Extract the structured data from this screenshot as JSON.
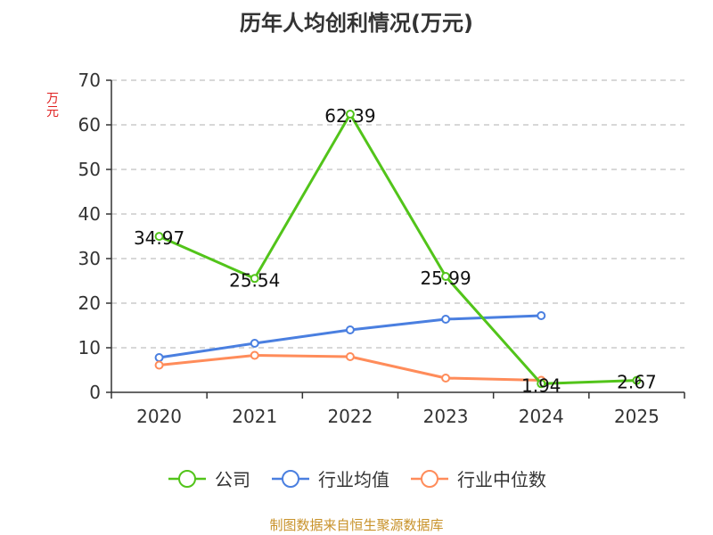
{
  "title": "历年人均创利情况(万元)",
  "y_unit": "万元",
  "source": "制图数据来自恒生聚源数据库",
  "chart_data": {
    "type": "line",
    "title": "历年人均创利情况(万元)",
    "ylabel": "万元",
    "categories": [
      "2020",
      "2021",
      "2022",
      "2023",
      "2024",
      "2025"
    ],
    "ylim": [
      0,
      70
    ],
    "yticks": [
      0,
      10,
      20,
      30,
      40,
      50,
      60,
      70
    ],
    "grid": true,
    "legend_position": "bottom",
    "series": [
      {
        "name": "公司",
        "color": "#52c41a",
        "values": [
          34.97,
          25.54,
          62.39,
          25.99,
          1.94,
          2.67
        ],
        "labels": [
          "34.97",
          "25.54",
          "62.39",
          "25.99",
          "1.94",
          "2.67"
        ]
      },
      {
        "name": "行业均值",
        "color": "#4a7fe0",
        "values": [
          7.8,
          11.0,
          14.0,
          16.4,
          17.2,
          null
        ]
      },
      {
        "name": "行业中位数",
        "color": "#ff8c5a",
        "values": [
          6.1,
          8.3,
          8.0,
          3.2,
          2.7,
          null
        ]
      }
    ]
  }
}
